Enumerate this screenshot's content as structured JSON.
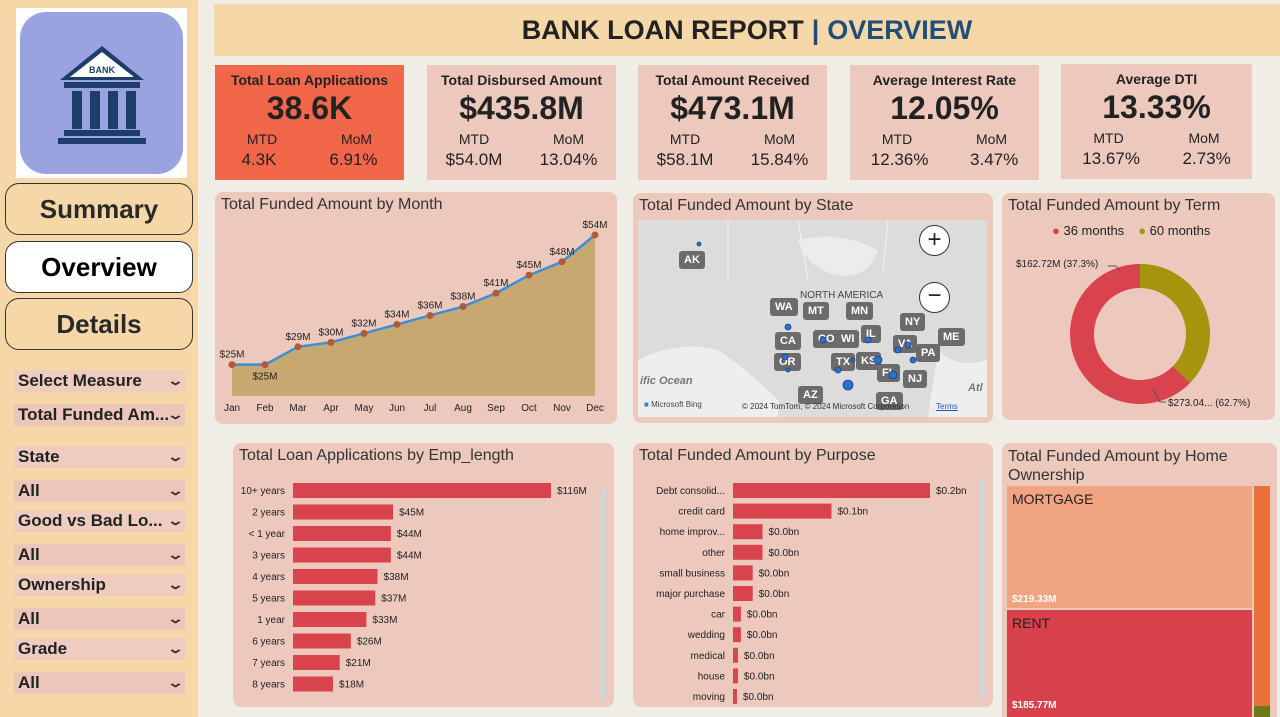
{
  "header": {
    "title": "BANK LOAN REPORT",
    "separator": "|",
    "subtitle": "OVERVIEW"
  },
  "logo": {
    "text": "BANK"
  },
  "nav": {
    "summary": "Summary",
    "overview": "Overview",
    "details": "Details"
  },
  "slicers": [
    {
      "label": "Select Measure",
      "value": "Total Funded Am..."
    },
    {
      "label": "State",
      "value": "All"
    },
    {
      "label": "Good vs Bad Lo...",
      "value": "All"
    },
    {
      "label": "Ownership",
      "value": "All"
    },
    {
      "label": "Grade",
      "value": "All"
    }
  ],
  "kpis": [
    {
      "title": "Total Loan Applications",
      "value": "38.6K",
      "mtd_label": "MTD",
      "mom_label": "MoM",
      "mtd": "4.3K",
      "mom": "6.91%"
    },
    {
      "title": "Total Disbursed Amount",
      "value": "$435.8M",
      "mtd_label": "MTD",
      "mom_label": "MoM",
      "mtd": "$54.0M",
      "mom": "13.04%"
    },
    {
      "title": "Total Amount Received",
      "value": "$473.1M",
      "mtd_label": "MTD",
      "mom_label": "MoM",
      "mtd": "$58.1M",
      "mom": "15.84%"
    },
    {
      "title": "Average Interest Rate",
      "value": "12.05%",
      "mtd_label": "MTD",
      "mom_label": "MoM",
      "mtd": "12.36%",
      "mom": "3.47%"
    },
    {
      "title": "Average DTI",
      "value": "13.33%",
      "mtd_label": "MTD",
      "mom_label": "MoM",
      "mtd": "13.67%",
      "mom": "2.73%"
    }
  ],
  "month_chart": {
    "title": "Total Funded Amount by Month",
    "months": [
      "Jan",
      "Feb",
      "Mar",
      "Apr",
      "May",
      "Jun",
      "Jul",
      "Aug",
      "Sep",
      "Oct",
      "Nov",
      "Dec"
    ],
    "values": [
      25,
      25,
      29,
      30,
      32,
      34,
      36,
      38,
      41,
      45,
      48,
      54
    ],
    "labels": [
      "$25M",
      "$25M",
      "$29M",
      "$30M",
      "$32M",
      "$34M",
      "$36M",
      "$38M",
      "$41M",
      "$45M",
      "$48M",
      "$54M"
    ],
    "line_color": "#3b8fd8",
    "area_color": "#c8a871",
    "point_color": "#b05a3a"
  },
  "state_map": {
    "title": "Total Funded Amount by State",
    "region_label": "NORTH AMERICA",
    "ocean_label": "ific Ocean",
    "atlantic_label": "Atl",
    "attribution": "© 2024 TomTom, © 2024 Microsoft Corporation",
    "terms": "Terms",
    "brand": "Microsoft Bing",
    "states": [
      "AK",
      "WA",
      "MT",
      "MN",
      "NY",
      "ME",
      "CA",
      "CO",
      "WI",
      "IL",
      "VA",
      "PA",
      "OR",
      "TX",
      "KS",
      "FL",
      "NJ",
      "AZ",
      "GA"
    ]
  },
  "term_chart": {
    "title": "Total Funded Amount by Term",
    "legend": [
      {
        "name": "36 months",
        "color": "#d9434e"
      },
      {
        "name": "60 months",
        "color": "#a6940f"
      }
    ],
    "slices": [
      {
        "name": "36 months",
        "value": 62.7,
        "label": "$273.04... (62.7%)"
      },
      {
        "name": "60 months",
        "value": 37.3,
        "label": "$162.72M (37.3%)"
      }
    ]
  },
  "emp_chart": {
    "title": "Total Loan Applications by Emp_length",
    "categories": [
      "10+ years",
      "2 years",
      "< 1 year",
      "3 years",
      "4 years",
      "5 years",
      "1 year",
      "6 years",
      "7 years",
      "8 years"
    ],
    "values": [
      116,
      45,
      44,
      44,
      38,
      37,
      33,
      26,
      21,
      18
    ],
    "labels": [
      "$116M",
      "$45M",
      "$44M",
      "$44M",
      "$38M",
      "$37M",
      "$33M",
      "$26M",
      "$21M",
      "$18M"
    ],
    "bar_color": "#d9434e"
  },
  "purpose_chart": {
    "title": "Total Funded Amount by Purpose",
    "categories": [
      "Debt consolid...",
      "credit card",
      "home improv...",
      "other",
      "small business",
      "major purchase",
      "car",
      "wedding",
      "medical",
      "house",
      "moving"
    ],
    "values": [
      0.2,
      0.1,
      0.03,
      0.03,
      0.02,
      0.02,
      0.008,
      0.008,
      0.005,
      0.005,
      0.004
    ],
    "labels": [
      "$0.2bn",
      "$0.1bn",
      "$0.0bn",
      "$0.0bn",
      "$0.0bn",
      "$0.0bn",
      "$0.0bn",
      "$0.0bn",
      "$0.0bn",
      "$0.0bn",
      "$0.0bn"
    ],
    "bar_color": "#d9434e"
  },
  "home_chart": {
    "title": "Total Funded Amount by Home Ownership",
    "items": [
      {
        "name": "MORTGAGE",
        "value_label": "$219.33M",
        "color": "#f0a482"
      },
      {
        "name": "RENT",
        "value_label": "$185.77M",
        "color": "#d7414c"
      }
    ]
  },
  "colors": {
    "sidebar": "#f6d7a8",
    "card": "#edc9bd",
    "accent": "#1f4e79",
    "highlight": "#f2674a"
  }
}
